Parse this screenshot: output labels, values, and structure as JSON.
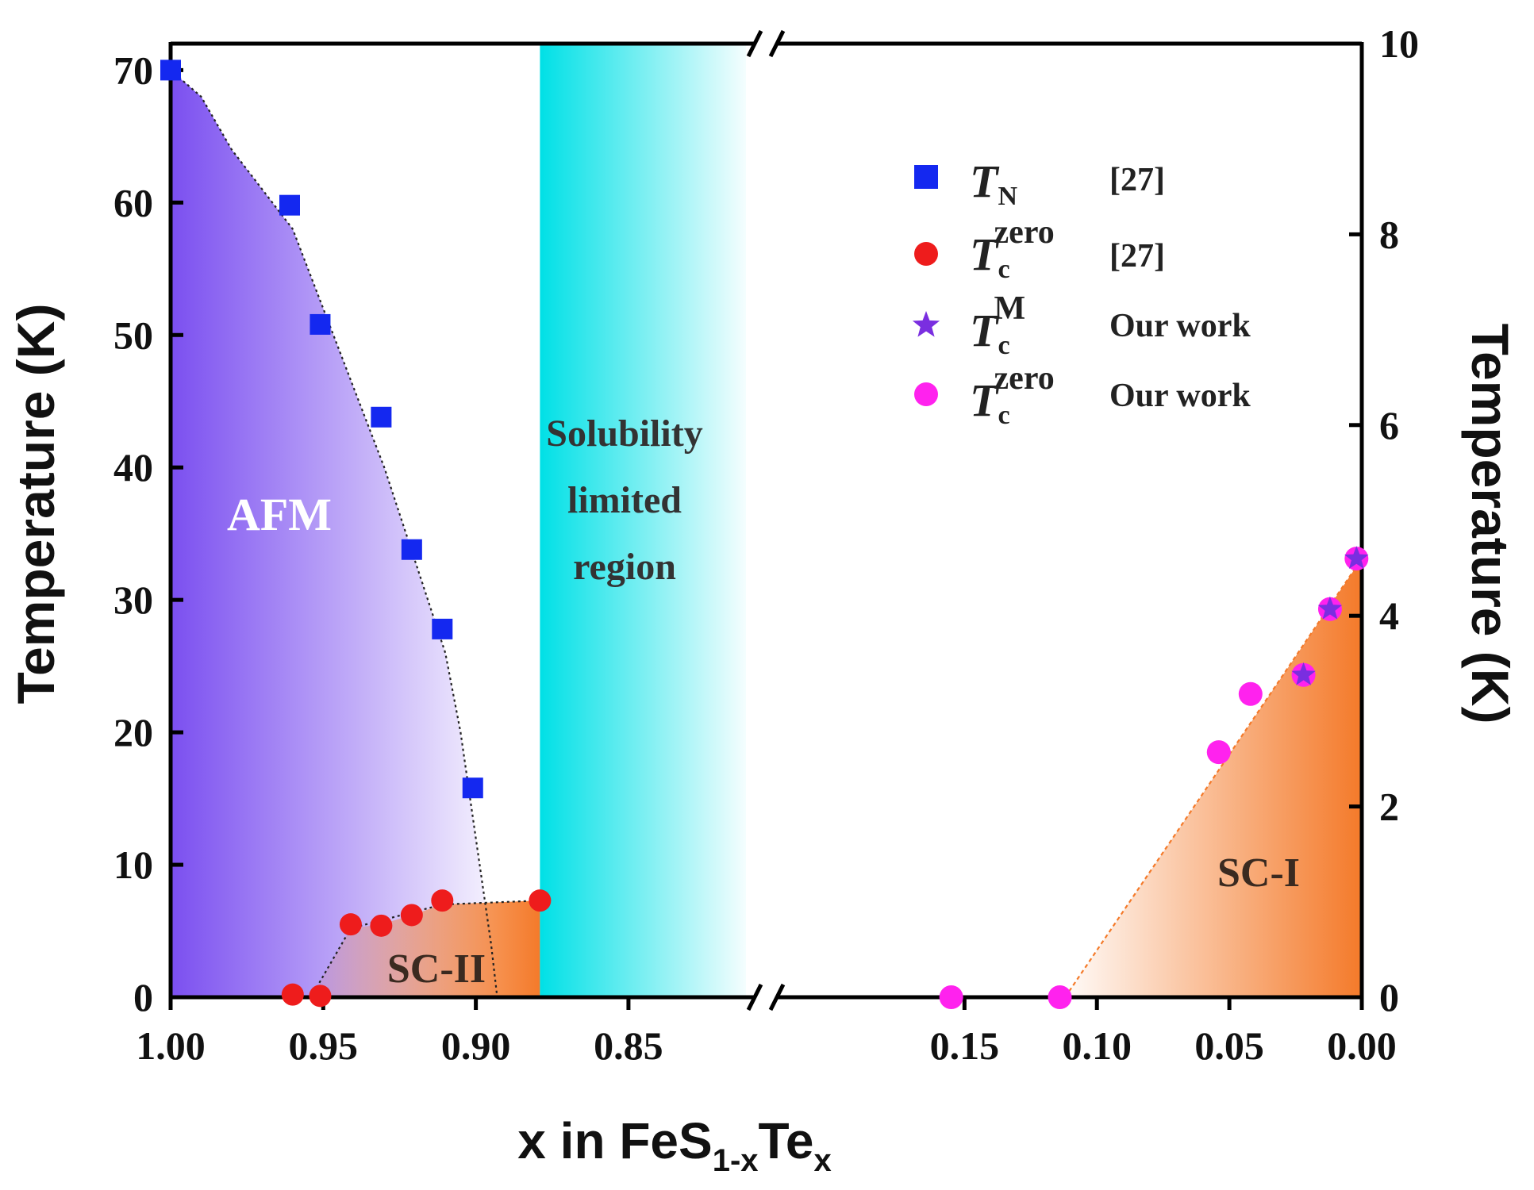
{
  "chart_data": {
    "type": "scatter",
    "title": "",
    "xlabel": {
      "main": "x in FeS",
      "sub1": "1-x",
      "mid": "Te",
      "sub2": "x"
    },
    "ylabel_left": "Temperature (K)",
    "ylabel_right": "Temperature (K)",
    "left_panel": {
      "xlim": [
        1.0,
        0.805
      ],
      "ylim": [
        0,
        72
      ],
      "x_ticks": [
        "1.00",
        "0.95",
        "0.90",
        "0.85"
      ],
      "x_tick_values": [
        1.0,
        0.95,
        0.9,
        0.85
      ],
      "y_ticks": [
        "0",
        "10",
        "20",
        "30",
        "40",
        "50",
        "60",
        "70"
      ],
      "y_tick_values": [
        0,
        10,
        20,
        30,
        40,
        50,
        60,
        70
      ]
    },
    "right_panel": {
      "xlim": [
        0.225,
        0.0
      ],
      "ylim": [
        0,
        10
      ],
      "x_ticks": [
        "0.15",
        "0.10",
        "0.05",
        "0.00"
      ],
      "x_tick_values": [
        0.15,
        0.1,
        0.05,
        0.0
      ],
      "y_ticks": [
        "0",
        "2",
        "4",
        "6",
        "8",
        "10"
      ],
      "y_tick_values": [
        0,
        2,
        4,
        6,
        8,
        10
      ]
    },
    "series": [
      {
        "name": "T_N",
        "legend_main": "T",
        "legend_sub": "N",
        "legend_sup": "",
        "source": "[27]",
        "marker": "square",
        "color": "#1428f0",
        "panel": "left",
        "points": [
          [
            1.0,
            70.0
          ],
          [
            0.961,
            59.8
          ],
          [
            0.951,
            50.8
          ],
          [
            0.931,
            43.8
          ],
          [
            0.921,
            33.8
          ],
          [
            0.911,
            27.8
          ],
          [
            0.901,
            15.8
          ]
        ]
      },
      {
        "name": "T_c^zero [27]",
        "legend_main": "T",
        "legend_sub": "c",
        "legend_sup": "zero",
        "source": "[27]",
        "marker": "circle",
        "color": "#ee1c1c",
        "panel": "left",
        "points": [
          [
            0.96,
            0.2
          ],
          [
            0.951,
            0.1
          ],
          [
            0.941,
            5.5
          ],
          [
            0.931,
            5.4
          ],
          [
            0.921,
            6.2
          ],
          [
            0.911,
            7.3
          ],
          [
            0.879,
            7.3
          ]
        ]
      },
      {
        "name": "T_c^M Our work",
        "legend_main": "T",
        "legend_sub": "c",
        "legend_sup": "M",
        "source": "Our work",
        "marker": "star",
        "color": "#7a2ee0",
        "panel": "right",
        "points": [
          [
            0.002,
            4.6
          ],
          [
            0.012,
            4.07
          ],
          [
            0.022,
            3.38
          ]
        ]
      },
      {
        "name": "T_c^zero Our work",
        "legend_main": "T",
        "legend_sub": "c",
        "legend_sup": "zero",
        "source": "Our work",
        "marker": "circle",
        "color": "#ff22ee",
        "panel": "right",
        "points": [
          [
            0.155,
            0.0
          ],
          [
            0.114,
            0.0
          ],
          [
            0.054,
            2.57
          ],
          [
            0.042,
            3.18
          ],
          [
            0.022,
            3.38
          ],
          [
            0.012,
            4.07
          ],
          [
            0.002,
            4.6
          ]
        ]
      }
    ],
    "region_labels": {
      "afm": "AFM",
      "sc2": "SC-II",
      "sc1": "SC-I",
      "solubility": [
        "Solubility",
        "limited",
        "region"
      ]
    },
    "colors": {
      "afm": "#7b4ff0",
      "sc": "#f47a2a",
      "solubility": "#00e0e6",
      "axis": "#000000",
      "sc1_text": "#3a2a20",
      "sc2_text": "#3a2a20",
      "solubility_text": "#333333",
      "afm_text": "#ffffff"
    },
    "legend_position": "top-right",
    "axis_break": "x-axis between 0.85 and 0.15"
  }
}
